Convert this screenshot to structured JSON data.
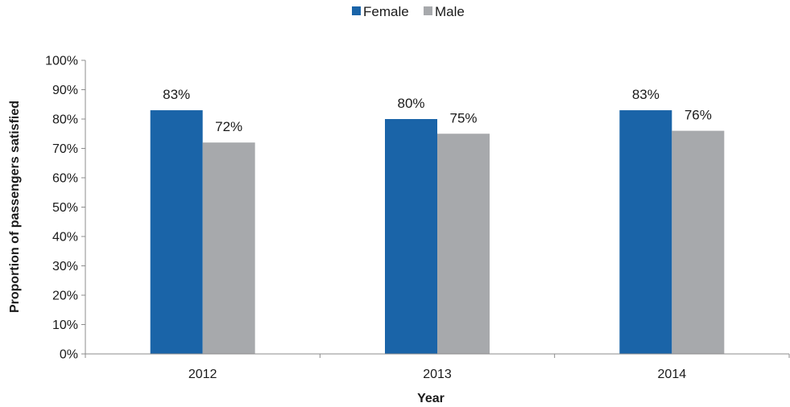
{
  "chart_data": {
    "type": "bar",
    "categories": [
      "2012",
      "2013",
      "2014"
    ],
    "series": [
      {
        "name": "Female",
        "color": "#1a64a8",
        "values": [
          83,
          80,
          83
        ],
        "labels": [
          "83%",
          "80%",
          "83%"
        ]
      },
      {
        "name": "Male",
        "color": "#a7a9ac",
        "values": [
          72,
          75,
          76
        ],
        "labels": [
          "72%",
          "75%",
          "76%"
        ]
      }
    ],
    "xlabel": "Year",
    "ylabel": "Proportion of passengers satisfied",
    "ylim": [
      0,
      100
    ],
    "yticks": [
      {
        "value": 0,
        "label": "0%"
      },
      {
        "value": 10,
        "label": "10%"
      },
      {
        "value": 20,
        "label": "20%"
      },
      {
        "value": 30,
        "label": "30%"
      },
      {
        "value": 40,
        "label": "40%"
      },
      {
        "value": 50,
        "label": "50%"
      },
      {
        "value": 60,
        "label": "60%"
      },
      {
        "value": 70,
        "label": "70%"
      },
      {
        "value": 80,
        "label": "80%"
      },
      {
        "value": 90,
        "label": "90%"
      },
      {
        "value": 100,
        "label": "100%"
      }
    ],
    "legend_position": "top-center",
    "grid": false
  }
}
